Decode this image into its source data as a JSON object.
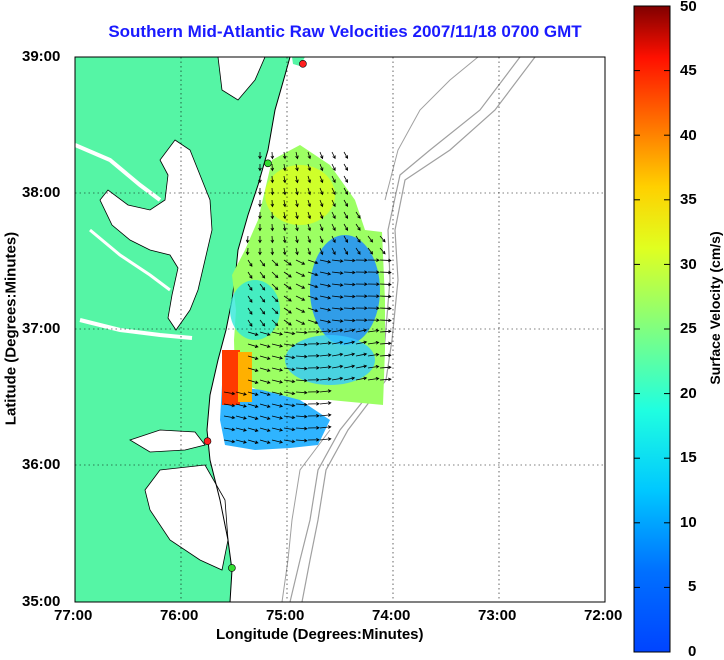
{
  "title": "Southern Mid-Atlantic Raw Velocities 2007/11/18 0700 GMT",
  "x_axis": {
    "label": "Longitude (Degrees:Minutes)",
    "ticks": [
      "77:00",
      "76:00",
      "75:00",
      "74:00",
      "73:00",
      "72:00"
    ]
  },
  "y_axis": {
    "label": "Latitude (Degrees:Minutes)",
    "ticks": [
      "39:00",
      "38:00",
      "37:00",
      "36:00",
      "35:00"
    ]
  },
  "colorbar": {
    "label": "Surface Velocity (cm/s)",
    "ticks": [
      "50",
      "45",
      "40",
      "35",
      "30",
      "25",
      "20",
      "15",
      "10",
      "5",
      "0"
    ],
    "range": [
      0,
      50
    ],
    "colormap": "jet"
  },
  "colors": {
    "land": "#55f5a5",
    "bathymetry": "#a0a0a0",
    "arrow": "#000000",
    "title": "#1a1aff",
    "station_red": "#ff2020",
    "station_green": "#33dd33"
  },
  "map": {
    "lon_range": [
      -77,
      -72
    ],
    "lat_range": [
      35,
      39
    ],
    "stations": [
      {
        "lon": -74.85,
        "lat": 38.95,
        "color": "red"
      },
      {
        "lon": -75.18,
        "lat": 38.22,
        "color": "green"
      },
      {
        "lon": -75.75,
        "lat": 36.18,
        "color": "red"
      },
      {
        "lon": -75.52,
        "lat": 35.25,
        "color": "green"
      }
    ]
  }
}
